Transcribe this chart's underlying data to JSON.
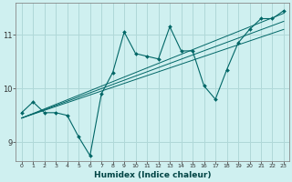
{
  "title": "",
  "xlabel": "Humidex (Indice chaleur)",
  "ylabel": "",
  "bg_color": "#cff0f0",
  "grid_color": "#b0d8d8",
  "line_color": "#006666",
  "xlim": [
    -0.5,
    23.5
  ],
  "ylim": [
    8.65,
    11.6
  ],
  "yticks": [
    9,
    10,
    11
  ],
  "xticks": [
    0,
    1,
    2,
    3,
    4,
    5,
    6,
    7,
    8,
    9,
    10,
    11,
    12,
    13,
    14,
    15,
    16,
    17,
    18,
    19,
    20,
    21,
    22,
    23
  ],
  "data_x": [
    0,
    1,
    2,
    3,
    4,
    5,
    6,
    7,
    8,
    9,
    10,
    11,
    12,
    13,
    14,
    15,
    16,
    17,
    18,
    19,
    20,
    21,
    22,
    23
  ],
  "data_y": [
    9.55,
    9.75,
    9.55,
    9.55,
    9.5,
    9.1,
    8.75,
    9.9,
    10.3,
    11.05,
    10.65,
    10.6,
    10.55,
    11.15,
    10.7,
    10.7,
    10.05,
    9.8,
    10.35,
    10.85,
    11.1,
    11.3,
    11.3,
    11.45
  ],
  "trend_lines": [
    [
      9.45,
      11.1
    ],
    [
      9.45,
      11.25
    ],
    [
      9.45,
      11.4
    ]
  ]
}
